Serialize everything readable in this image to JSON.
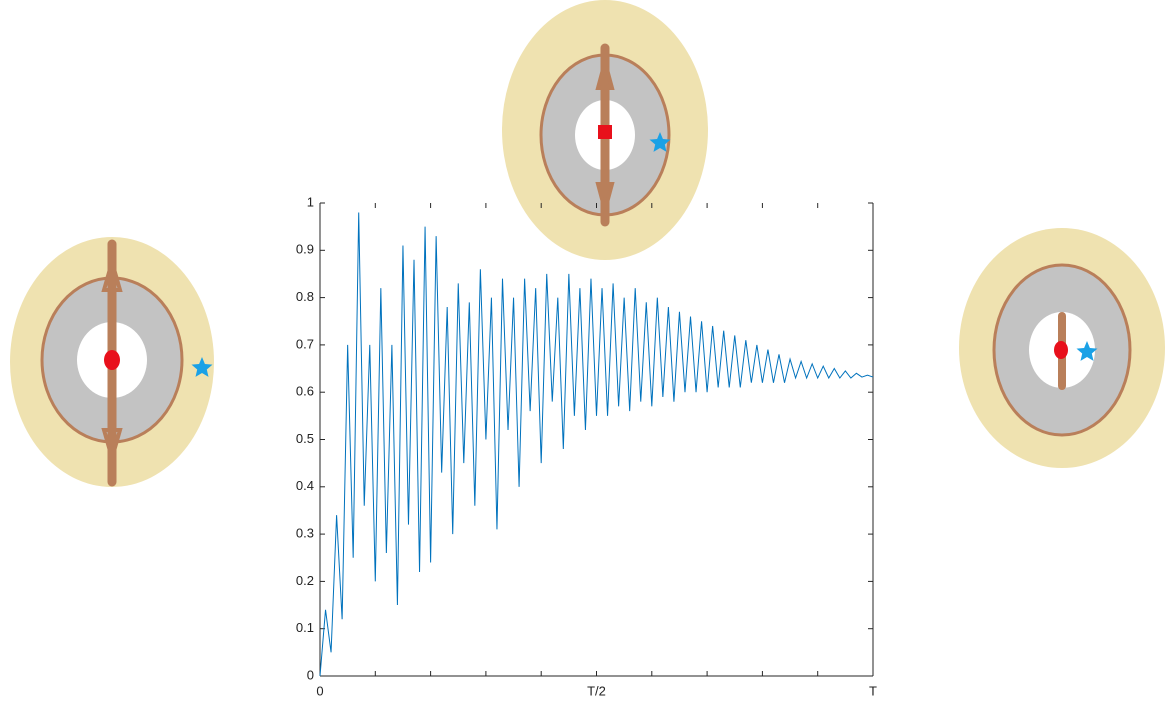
{
  "chart_data": {
    "type": "line",
    "x": [
      0,
      0.01,
      0.02,
      0.03,
      0.04,
      0.05,
      0.06,
      0.07,
      0.08,
      0.09,
      0.1,
      0.11,
      0.12,
      0.13,
      0.14,
      0.15,
      0.16,
      0.17,
      0.18,
      0.19,
      0.2,
      0.21,
      0.22,
      0.23,
      0.24,
      0.25,
      0.26,
      0.27,
      0.28,
      0.29,
      0.3,
      0.31,
      0.32,
      0.33,
      0.34,
      0.35,
      0.36,
      0.37,
      0.38,
      0.39,
      0.4,
      0.41,
      0.42,
      0.43,
      0.44,
      0.45,
      0.46,
      0.47,
      0.48,
      0.49,
      0.5,
      0.51,
      0.52,
      0.53,
      0.54,
      0.55,
      0.56,
      0.57,
      0.58,
      0.59,
      0.6,
      0.61,
      0.62,
      0.63,
      0.64,
      0.65,
      0.66,
      0.67,
      0.68,
      0.69,
      0.7,
      0.71,
      0.72,
      0.73,
      0.74,
      0.75,
      0.76,
      0.77,
      0.78,
      0.79,
      0.8,
      0.81,
      0.82,
      0.83,
      0.84,
      0.85,
      0.86,
      0.87,
      0.88,
      0.89,
      0.9,
      0.91,
      0.92,
      0.93,
      0.94,
      0.95,
      0.96,
      0.97,
      0.98,
      0.99,
      1
    ],
    "series": [
      {
        "color": "#0072bd",
        "values": [
          0,
          0.14,
          0.05,
          0.34,
          0.12,
          0.7,
          0.25,
          0.98,
          0.36,
          0.7,
          0.2,
          0.82,
          0.26,
          0.7,
          0.15,
          0.91,
          0.32,
          0.88,
          0.22,
          0.95,
          0.24,
          0.93,
          0.43,
          0.78,
          0.3,
          0.83,
          0.45,
          0.79,
          0.36,
          0.86,
          0.5,
          0.8,
          0.31,
          0.84,
          0.52,
          0.8,
          0.4,
          0.84,
          0.56,
          0.82,
          0.45,
          0.85,
          0.58,
          0.8,
          0.48,
          0.85,
          0.55,
          0.82,
          0.52,
          0.84,
          0.55,
          0.82,
          0.55,
          0.83,
          0.57,
          0.8,
          0.56,
          0.82,
          0.58,
          0.79,
          0.57,
          0.8,
          0.59,
          0.78,
          0.58,
          0.77,
          0.6,
          0.76,
          0.6,
          0.75,
          0.6,
          0.74,
          0.61,
          0.73,
          0.61,
          0.72,
          0.61,
          0.71,
          0.62,
          0.7,
          0.62,
          0.69,
          0.62,
          0.68,
          0.62,
          0.67,
          0.63,
          0.665,
          0.63,
          0.66,
          0.63,
          0.655,
          0.63,
          0.65,
          0.63,
          0.645,
          0.63,
          0.64,
          0.632,
          0.636,
          0.632
        ]
      }
    ],
    "xlim": [
      0,
      1
    ],
    "xticks": [
      0,
      {
        "value": 0.5,
        "label": "T/2"
      },
      {
        "value": 1,
        "label": "T"
      }
    ],
    "xminorticks": [
      0.1,
      0.2,
      0.3,
      0.4,
      0.6,
      0.7,
      0.8,
      0.9
    ],
    "ylim": [
      0,
      1
    ],
    "yticks": [
      0,
      0.1,
      0.2,
      0.3,
      0.4,
      0.5,
      0.6,
      0.7,
      0.8,
      0.9,
      1
    ]
  }
}
